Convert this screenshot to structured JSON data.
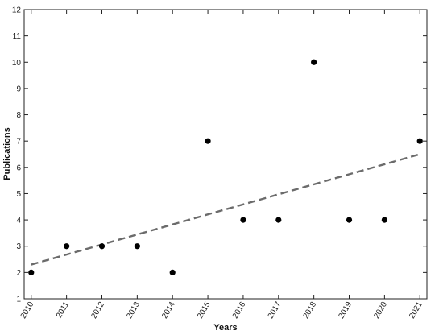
{
  "chart_data": {
    "type": "scatter",
    "xlabel": "Years",
    "ylabel": "Publications",
    "x": [
      2010,
      2011,
      2012,
      2013,
      2014,
      2015,
      2016,
      2017,
      2018,
      2019,
      2020,
      2021
    ],
    "series": [
      {
        "values": [
          2,
          3,
          3,
          3,
          2,
          7,
          4,
          4,
          10,
          4,
          4,
          7
        ],
        "color": "#000000"
      }
    ],
    "trendline": {
      "style": "dashed",
      "color": "#6b6b6b",
      "start": [
        2010,
        2.3
      ],
      "end": [
        2021,
        6.5
      ]
    },
    "xlim": [
      2009.8,
      2021.2
    ],
    "ylim": [
      1,
      12
    ],
    "yticks": [
      1,
      2,
      3,
      4,
      5,
      6,
      7,
      8,
      9,
      10,
      11,
      12
    ],
    "xticks": [
      2010,
      2011,
      2012,
      2013,
      2014,
      2015,
      2016,
      2017,
      2018,
      2019,
      2020,
      2021
    ],
    "grid": false,
    "legend": "none"
  }
}
